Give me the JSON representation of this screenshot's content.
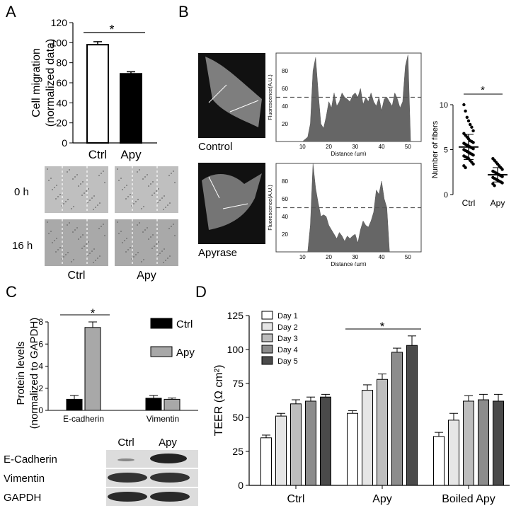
{
  "panels": {
    "a": "A",
    "b": "B",
    "c": "C",
    "d": "D"
  },
  "chart_data": [
    {
      "id": "A",
      "type": "bar",
      "categories": [
        "Ctrl",
        "Apy"
      ],
      "values": [
        98,
        69
      ],
      "errors": [
        3,
        2
      ],
      "ylabel": [
        "Cell migration",
        "(normalized data)"
      ],
      "ylim": [
        0,
        120
      ],
      "yticks": [
        0,
        20,
        40,
        60,
        80,
        100,
        120
      ],
      "significance": "*",
      "colors": [
        "#ffffff",
        "#000000"
      ],
      "image_row_labels": [
        "0 h",
        "16 h"
      ],
      "image_col_labels": [
        "Ctrl",
        "Apy"
      ]
    },
    {
      "id": "B-control",
      "type": "area",
      "x": [
        10,
        12,
        13,
        14,
        15,
        16,
        17,
        18,
        19,
        20,
        21,
        22,
        23,
        24,
        25,
        26,
        27,
        28,
        29,
        30,
        31,
        32,
        33,
        34,
        35,
        36,
        37,
        38,
        39,
        40,
        41,
        42,
        43,
        44,
        45,
        46,
        47,
        48,
        49,
        50,
        51
      ],
      "y": [
        0,
        5,
        20,
        80,
        95,
        55,
        20,
        15,
        28,
        45,
        38,
        55,
        40,
        45,
        55,
        50,
        48,
        45,
        52,
        55,
        50,
        60,
        42,
        50,
        45,
        55,
        45,
        40,
        50,
        35,
        48,
        50,
        45,
        40,
        55,
        48,
        38,
        45,
        85,
        98,
        0
      ],
      "ylabel": "Fluorescence(A.U.)",
      "xlabel": "Distance (µm)",
      "xlim": [
        0,
        55
      ],
      "xticks": [
        10,
        20,
        30,
        40,
        50
      ],
      "ylim": [
        0,
        100
      ],
      "yticks": [
        20,
        40,
        60,
        80
      ],
      "threshold": 50,
      "image_label": "Control"
    },
    {
      "id": "B-apyrase",
      "type": "area",
      "x": [
        12,
        13,
        14,
        15,
        16,
        17,
        18,
        19,
        20,
        21,
        22,
        23,
        24,
        25,
        26,
        27,
        28,
        29,
        30,
        31,
        32,
        33,
        34,
        35,
        36,
        37,
        38,
        39,
        40,
        41,
        42,
        43
      ],
      "y": [
        0,
        30,
        100,
        72,
        55,
        40,
        42,
        40,
        30,
        25,
        20,
        15,
        22,
        18,
        12,
        18,
        15,
        18,
        20,
        10,
        25,
        35,
        30,
        28,
        35,
        45,
        70,
        65,
        80,
        60,
        50,
        0
      ],
      "ylabel": "Fluorescence(A.U.)",
      "xlabel": "Distance (µm)",
      "xlim": [
        0,
        55
      ],
      "xticks": [
        10,
        20,
        30,
        40,
        50
      ],
      "ylim": [
        0,
        100
      ],
      "yticks": [
        20,
        40,
        60,
        80
      ],
      "threshold": 50,
      "image_label": "Apyrase"
    },
    {
      "id": "B-fibers",
      "type": "scatter",
      "categories": [
        "Ctrl",
        "Apy"
      ],
      "ctrl_points": [
        10,
        9.3,
        8.6,
        8.2,
        7.8,
        7.5,
        7.1,
        6.8,
        6.6,
        6.4,
        6.2,
        6.0,
        5.9,
        5.8,
        5.7,
        5.6,
        5.5,
        5.4,
        5.3,
        5.2,
        5.1,
        5.0,
        4.9,
        4.8,
        4.7,
        4.6,
        4.5,
        4.4,
        4.3,
        4.2,
        4.1,
        4.0,
        3.8,
        3.6,
        3.4,
        3.2,
        3.0
      ],
      "apy_points": [
        4.0,
        3.8,
        3.6,
        3.4,
        3.2,
        3.0,
        2.8,
        2.6,
        2.5,
        2.4,
        2.3,
        2.2,
        2.1,
        2.0,
        1.9,
        1.8,
        1.7,
        1.6,
        1.5,
        1.4,
        1.3,
        1.2,
        1.0
      ],
      "means": [
        5.3,
        2.2
      ],
      "sds": [
        1.4,
        0.8
      ],
      "ylabel": "Number of fibers",
      "ylim": [
        0,
        10
      ],
      "yticks": [
        0,
        5,
        10
      ],
      "significance": "*"
    },
    {
      "id": "C",
      "type": "bar",
      "categories": [
        "E-cadherin",
        "Vimentin"
      ],
      "series": [
        {
          "name": "Ctrl",
          "values": [
            1.0,
            1.1
          ],
          "errors": [
            0.35,
            0.25
          ],
          "color": "#000000"
        },
        {
          "name": "Apy",
          "values": [
            7.5,
            1.0
          ],
          "errors": [
            0.5,
            0.12
          ],
          "color": "#a8a8a8"
        }
      ],
      "ylabel": [
        "Protein levels",
        "(normalized to GAPDH)"
      ],
      "ylim": [
        0,
        8
      ],
      "yticks": [
        0,
        2,
        4,
        6,
        8
      ],
      "significance": "*",
      "blot_col_labels": [
        "Ctrl",
        "Apy"
      ],
      "blot_row_labels": [
        "E-Cadherin",
        "Vimentin",
        "GAPDH"
      ]
    },
    {
      "id": "D",
      "type": "bar",
      "categories": [
        "Ctrl",
        "Apy",
        "Boiled Apy"
      ],
      "series": [
        {
          "name": "Day 1",
          "values": [
            35,
            53,
            36
          ],
          "errors": [
            2,
            2,
            3
          ],
          "color": "#ffffff"
        },
        {
          "name": "Day 2",
          "values": [
            51,
            70,
            48
          ],
          "errors": [
            2,
            4,
            5
          ],
          "color": "#e6e6e6"
        },
        {
          "name": "Day 3",
          "values": [
            60,
            78,
            62
          ],
          "errors": [
            3,
            4,
            4
          ],
          "color": "#bdbdbd"
        },
        {
          "name": "Day 4",
          "values": [
            62,
            98,
            63
          ],
          "errors": [
            3,
            3,
            4
          ],
          "color": "#8c8c8c"
        },
        {
          "name": "Day 5",
          "values": [
            65,
            103,
            62
          ],
          "errors": [
            2,
            7,
            5
          ],
          "color": "#4a4a4a"
        }
      ],
      "ylabel": "TEER (Ω cm²)",
      "ylim": [
        0,
        125
      ],
      "yticks": [
        0,
        25,
        50,
        75,
        100,
        125
      ],
      "significance": "*"
    }
  ]
}
